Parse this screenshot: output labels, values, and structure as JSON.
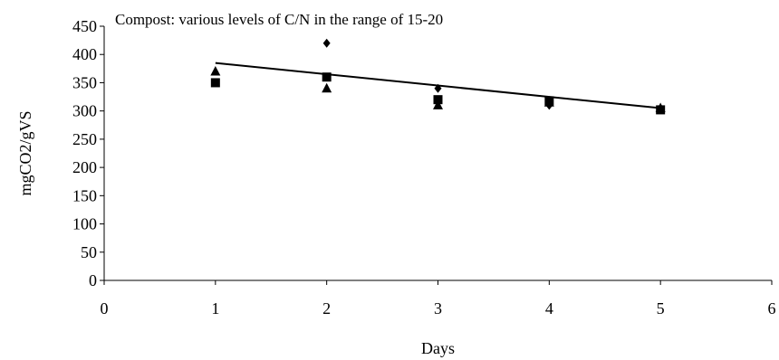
{
  "chart_data": {
    "type": "scatter",
    "title": "",
    "annotation": "Compost: various levels of C/N in the range of 15-20",
    "xlabel": "Days",
    "ylabel": "mgCO2/gVS",
    "xlim": [
      0,
      6
    ],
    "ylim": [
      0,
      450
    ],
    "x_ticks": [
      "0",
      "1",
      "2",
      "3",
      "4",
      "5",
      "6"
    ],
    "y_ticks": [
      "0",
      "50",
      "100",
      "150",
      "200",
      "250",
      "300",
      "350",
      "400",
      "450"
    ],
    "grid": false,
    "legend": "none",
    "series": [
      {
        "marker": "diamond",
        "color": "#000000",
        "points": [
          [
            2,
            420
          ],
          [
            3,
            340
          ],
          [
            4,
            310
          ]
        ]
      },
      {
        "marker": "triangle",
        "color": "#000000",
        "points": [
          [
            1,
            370
          ],
          [
            2,
            340
          ],
          [
            3,
            310
          ],
          [
            4,
            315
          ],
          [
            5,
            305
          ]
        ]
      },
      {
        "marker": "square",
        "color": "#000000",
        "points": [
          [
            1,
            350
          ],
          [
            2,
            360
          ],
          [
            3,
            320
          ],
          [
            4,
            318
          ],
          [
            5,
            302
          ]
        ]
      }
    ],
    "trendline": {
      "type": "linear",
      "color": "#000000",
      "x": [
        1,
        5
      ],
      "y": [
        385,
        305
      ]
    }
  }
}
